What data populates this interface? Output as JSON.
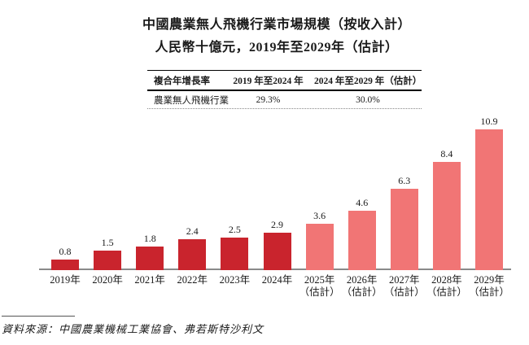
{
  "title": {
    "line1": "中國農業無人飛機行業市場規模（按收入計）",
    "line2": "人民幣十億元，2019年至2029年（估計）"
  },
  "cagr_table": {
    "col1_header": "複合年增長率",
    "col2_header": "2019 年至2024 年",
    "col3_header": "2024 年至2029 年（估計）",
    "row_label": "農業無人飛機行業",
    "col2_value": "29.3%",
    "col3_value": "30.0%"
  },
  "chart_data": {
    "type": "bar",
    "title": "中國農業無人飛機行業市場規模（按收入計）",
    "subtitle": "人民幣十億元，2019年至2029年（估計）",
    "unit": "人民幣十億元",
    "categories": [
      "2019年",
      "2020年",
      "2021年",
      "2022年",
      "2023年",
      "2024年",
      "2025年（估計）",
      "2026年（估計）",
      "2027年（估計）",
      "2028年（估計）",
      "2029年（估計）"
    ],
    "series": [
      {
        "name": "農業無人飛機行業",
        "values": [
          0.8,
          1.5,
          1.8,
          2.4,
          2.5,
          2.9,
          3.6,
          4.6,
          6.3,
          8.4,
          10.9
        ]
      }
    ],
    "bars": [
      {
        "label": "2019年",
        "sublabel": "",
        "value": 0.8,
        "estimate": false
      },
      {
        "label": "2020年",
        "sublabel": "",
        "value": 1.5,
        "estimate": false
      },
      {
        "label": "2021年",
        "sublabel": "",
        "value": 1.8,
        "estimate": false
      },
      {
        "label": "2022年",
        "sublabel": "",
        "value": 2.4,
        "estimate": false
      },
      {
        "label": "2023年",
        "sublabel": "",
        "value": 2.5,
        "estimate": false
      },
      {
        "label": "2024年",
        "sublabel": "",
        "value": 2.9,
        "estimate": false
      },
      {
        "label": "2025年",
        "sublabel": "（估計）",
        "value": 3.6,
        "estimate": true
      },
      {
        "label": "2026年",
        "sublabel": "（估計）",
        "value": 4.6,
        "estimate": true
      },
      {
        "label": "2027年",
        "sublabel": "（估計）",
        "value": 6.3,
        "estimate": true
      },
      {
        "label": "2028年",
        "sublabel": "（估計）",
        "value": 8.4,
        "estimate": true
      },
      {
        "label": "2029年",
        "sublabel": "（估計）",
        "value": 10.9,
        "estimate": true
      }
    ],
    "colors": {
      "actual": "#C9242D",
      "estimate": "#F17575",
      "baseline": "#8A8A8A"
    },
    "ylim": [
      0,
      11
    ],
    "grid": false,
    "value_labels": true,
    "legend": "none"
  },
  "source": {
    "text": "資料來源：中國農業機械工業協會、弗若斯特沙利文"
  }
}
